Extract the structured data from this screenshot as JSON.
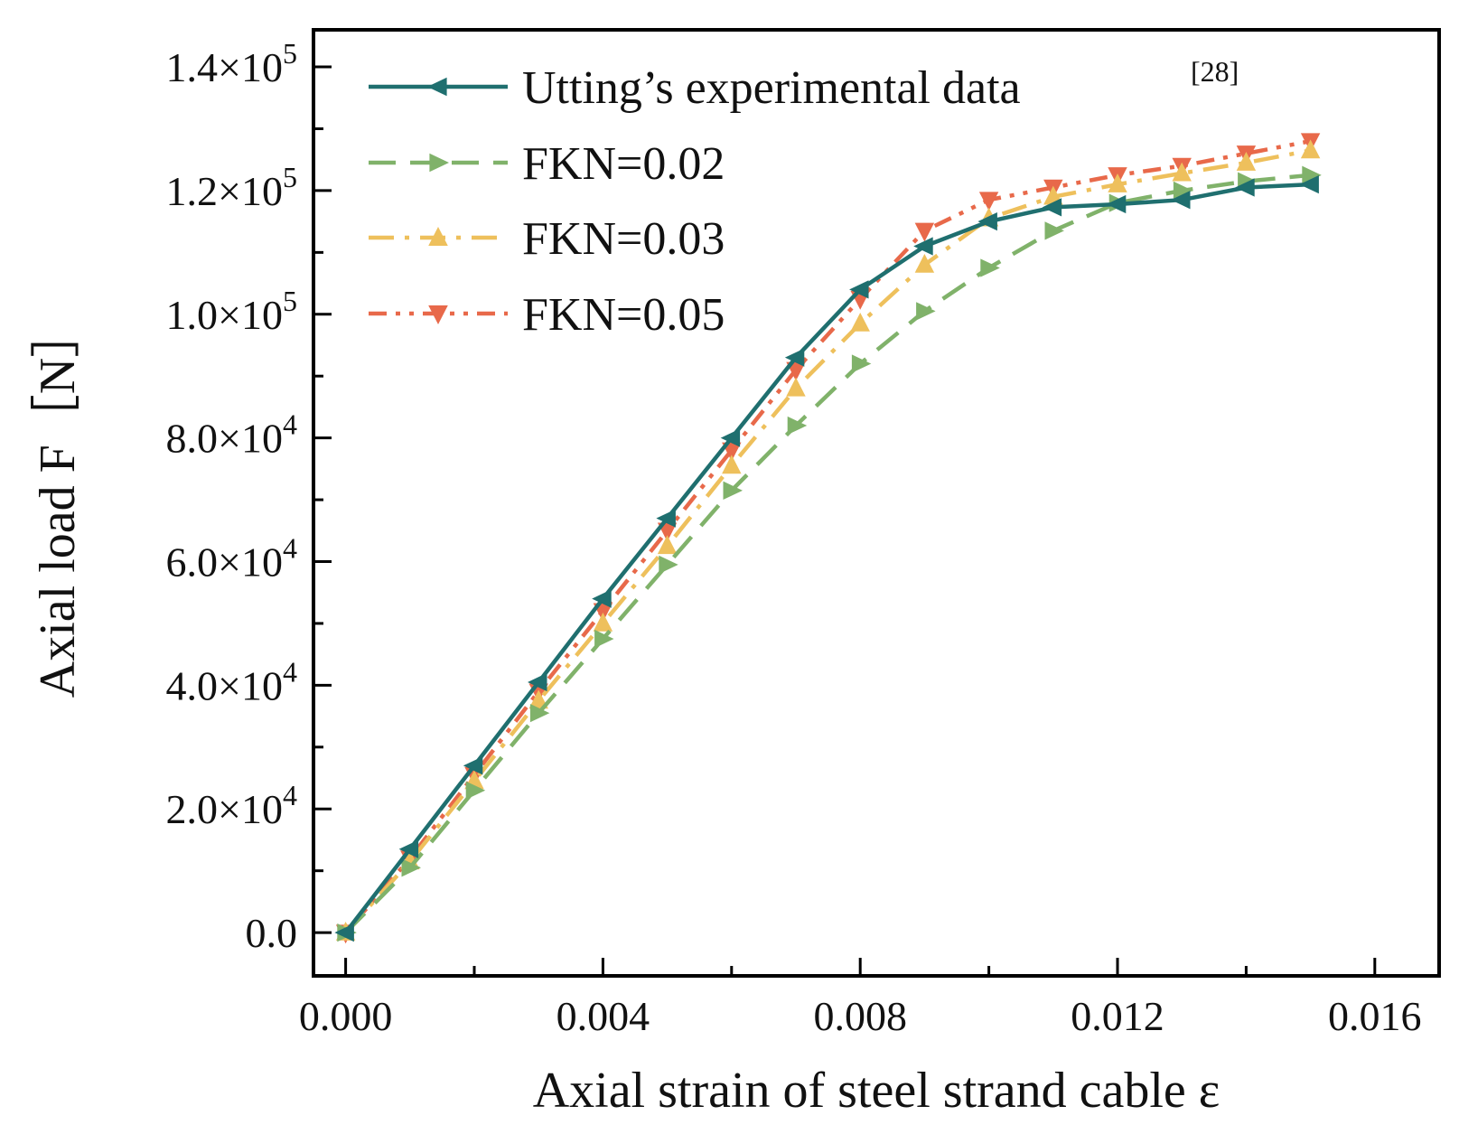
{
  "chart_data": {
    "type": "line",
    "title": "",
    "xlabel": "Axial strain of steel strand cable ε",
    "ylabel": "Axial load  F［N］",
    "xlim": [
      -0.0005,
      0.017
    ],
    "ylim": [
      -7000,
      146000
    ],
    "x_ticks": [
      0.0,
      0.004,
      0.008,
      0.012,
      0.016
    ],
    "x_tick_labels": [
      "0.000",
      "0.004",
      "0.008",
      "0.012",
      "0.016"
    ],
    "y_ticks": [
      0,
      20000,
      40000,
      60000,
      80000,
      100000,
      120000,
      140000
    ],
    "y_tick_labels": [
      {
        "mantissa": "0.0",
        "times": "",
        "exponent": ""
      },
      {
        "mantissa": "2.0",
        "times": "×10",
        "exponent": "4"
      },
      {
        "mantissa": "4.0",
        "times": "×10",
        "exponent": "4"
      },
      {
        "mantissa": "6.0",
        "times": "×10",
        "exponent": "4"
      },
      {
        "mantissa": "8.0",
        "times": "×10",
        "exponent": "4"
      },
      {
        "mantissa": "1.0",
        "times": "×10",
        "exponent": "5"
      },
      {
        "mantissa": "1.2",
        "times": "×10",
        "exponent": "5"
      },
      {
        "mantissa": "1.4",
        "times": "×10",
        "exponent": "5"
      }
    ],
    "legend_position": "top-left",
    "grid": false,
    "x": [
      0.0,
      0.001,
      0.002,
      0.003,
      0.004,
      0.005,
      0.006,
      0.007,
      0.008,
      0.009,
      0.01,
      0.011,
      0.012,
      0.013,
      0.014,
      0.015
    ],
    "series": [
      {
        "name": "Utting’s experimental data",
        "reference": "[28]",
        "color": "#1f6f6f",
        "dash": "solid",
        "marker": "triangle-left",
        "values": [
          0,
          13500,
          27000,
          40500,
          54000,
          67000,
          80000,
          93000,
          104000,
          111000,
          115000,
          117300,
          117800,
          118500,
          120500,
          121000
        ]
      },
      {
        "name": "FKN=0.02",
        "reference": "",
        "color": "#80b26a",
        "dash": "dash",
        "marker": "triangle-right",
        "values": [
          0,
          10500,
          23000,
          35500,
          47500,
          59500,
          71500,
          82000,
          92000,
          100500,
          107500,
          113500,
          118000,
          120000,
          121500,
          122500
        ]
      },
      {
        "name": "FKN=0.03",
        "reference": "",
        "color": "#eec05c",
        "dash": "dashdot",
        "marker": "triangle-up",
        "values": [
          0,
          11500,
          24500,
          37500,
          50000,
          62500,
          75500,
          88000,
          98500,
          108000,
          115500,
          119000,
          121000,
          122800,
          124500,
          126500
        ]
      },
      {
        "name": "FKN=0.05",
        "reference": "",
        "color": "#e8694a",
        "dash": "dashdotdot",
        "marker": "triangle-down",
        "values": [
          0,
          12000,
          25500,
          39000,
          52000,
          65000,
          78000,
          91000,
          102500,
          113500,
          118500,
          120500,
          122500,
          124000,
          126000,
          128000
        ]
      }
    ]
  }
}
